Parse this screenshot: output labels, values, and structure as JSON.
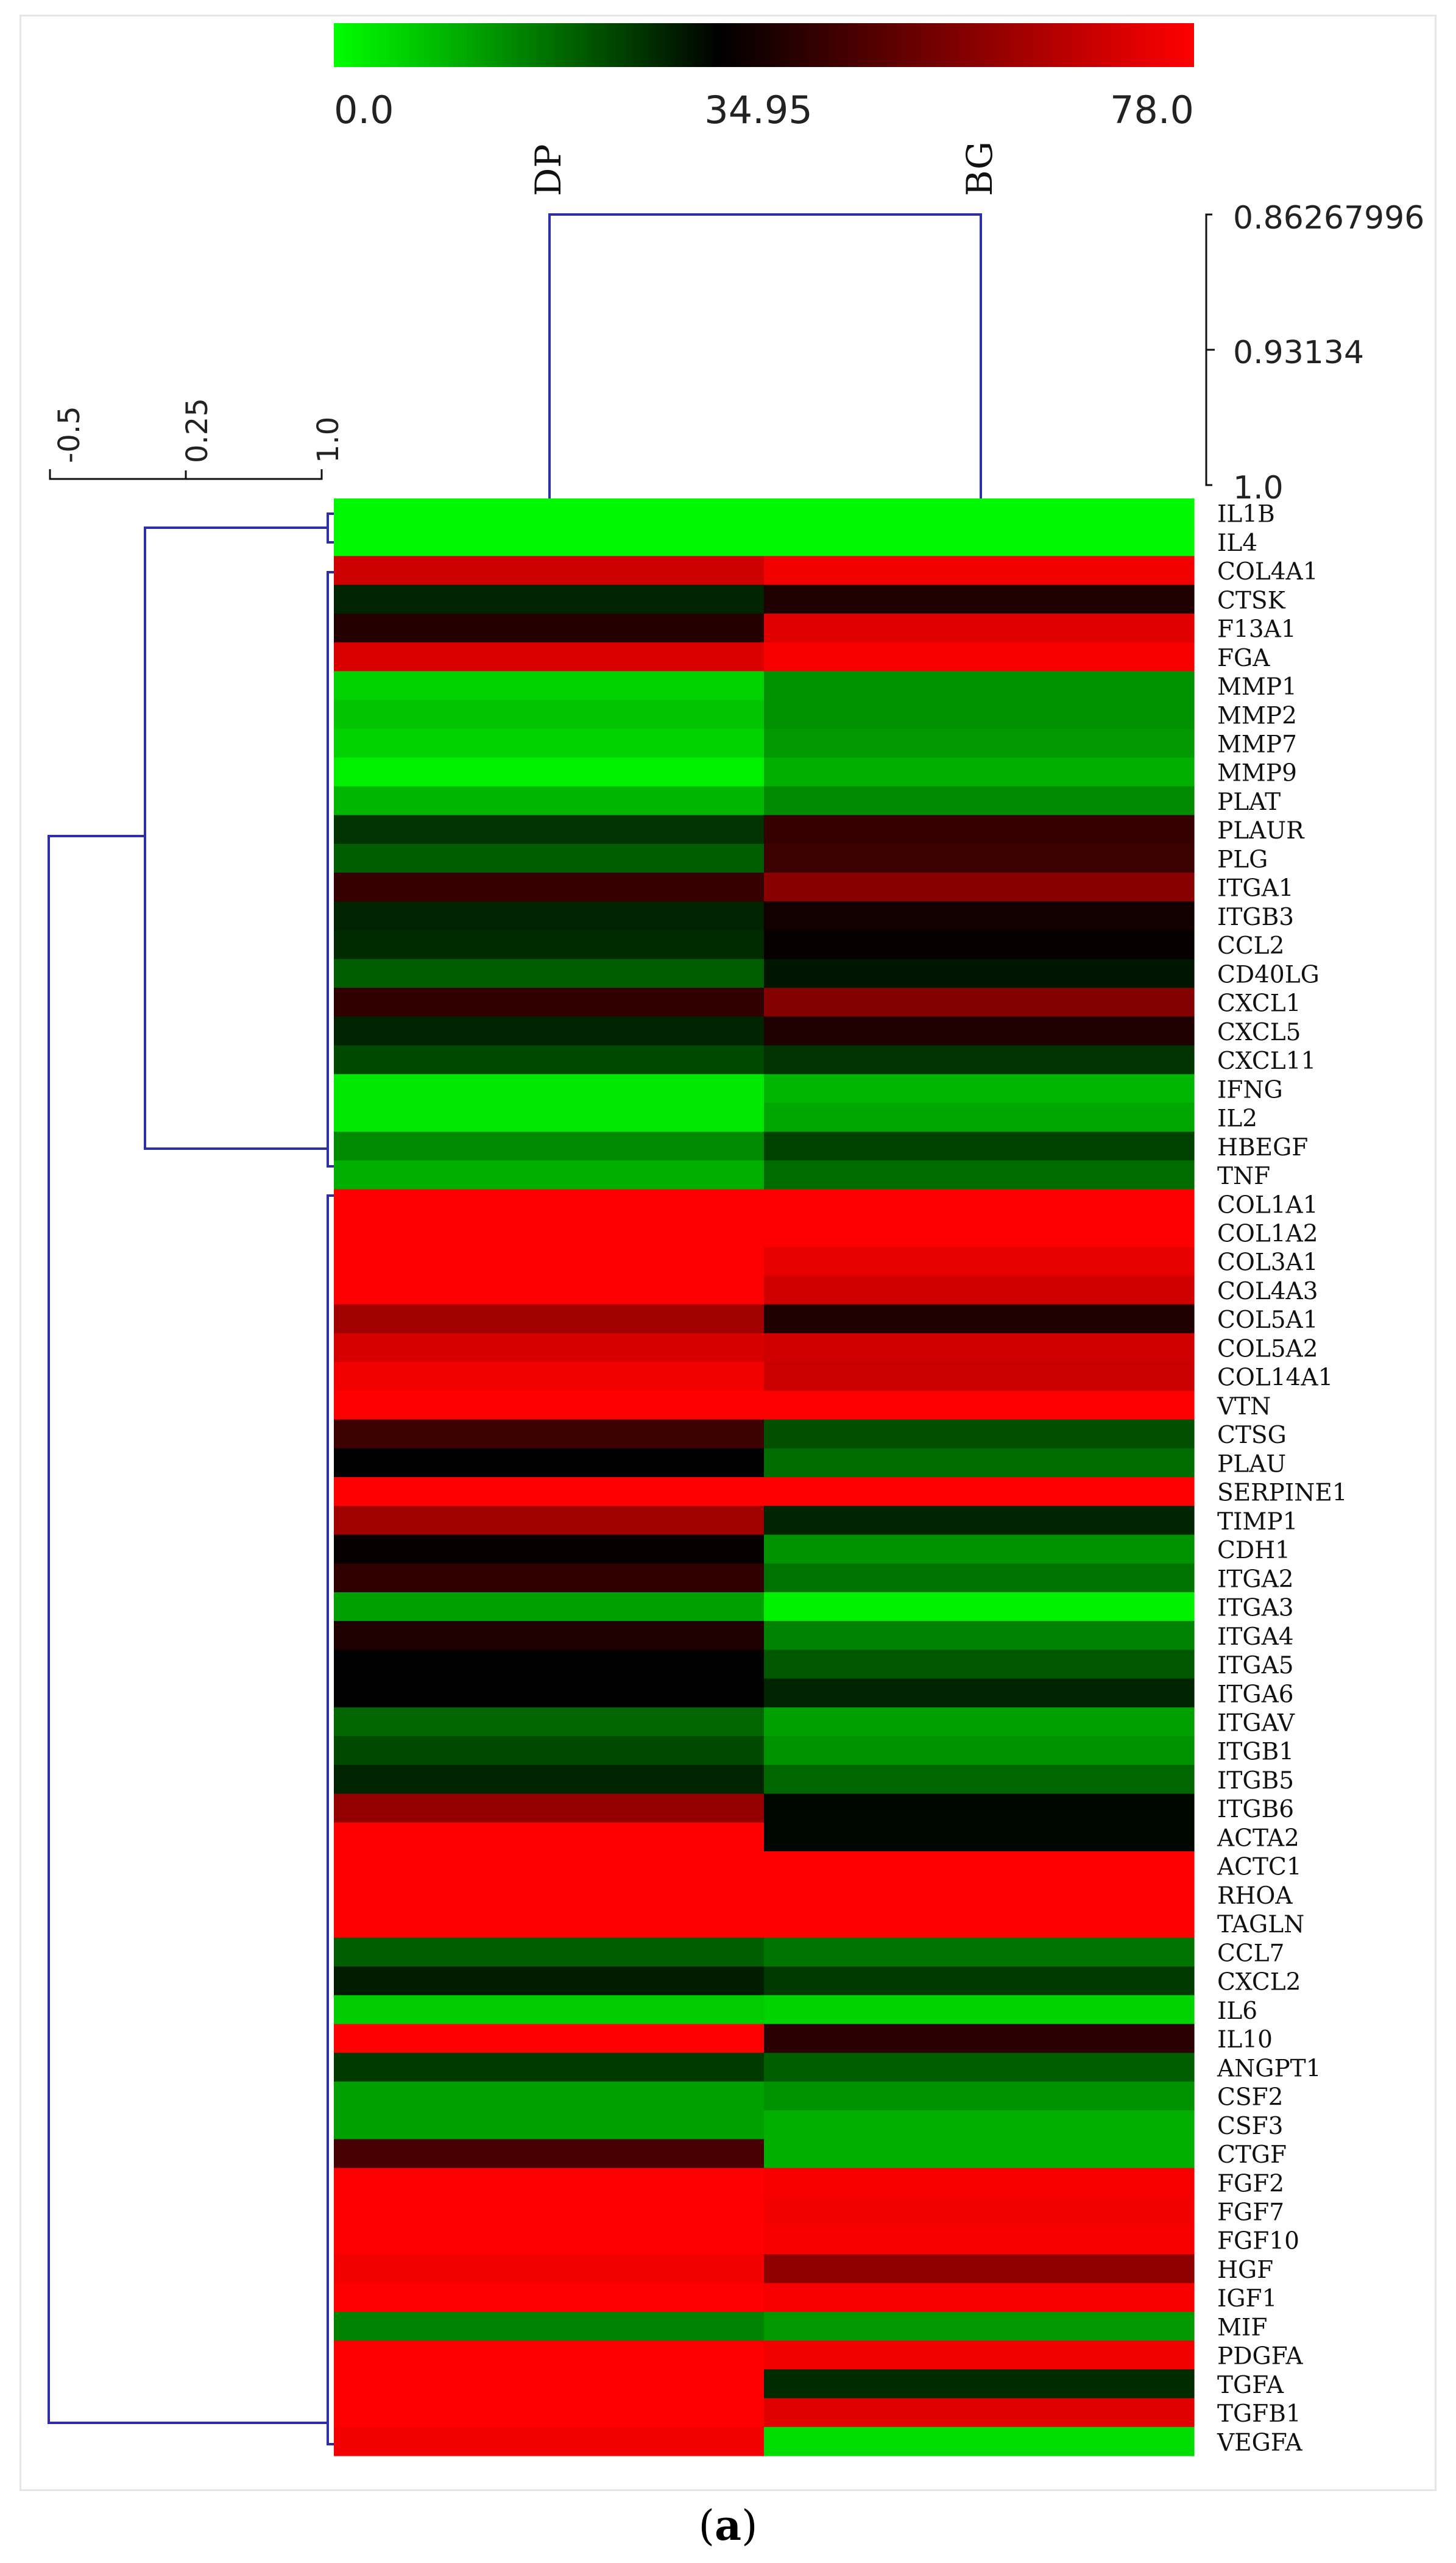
{
  "chart_data": {
    "type": "heatmap",
    "colorscale": {
      "min": 0.0,
      "mid": 34.95,
      "max": 78.0,
      "min_label": "0.0",
      "mid_label": "34.95",
      "max_label": "78.0",
      "colors": [
        "#00ff00",
        "#000000",
        "#ff0000"
      ]
    },
    "columns": [
      "DP",
      "BG"
    ],
    "rows": [
      "IL1B",
      "IL4",
      "COL4A1",
      "CTSK",
      "F13A1",
      "FGA",
      "MMP1",
      "MMP2",
      "MMP7",
      "MMP9",
      "PLAT",
      "PLAUR",
      "PLG",
      "ITGA1",
      "ITGB3",
      "CCL2",
      "CD40LG",
      "CXCL1",
      "CXCL5",
      "CXCL11",
      "IFNG",
      "IL2",
      "HBEGF",
      "TNF",
      "COL1A1",
      "COL1A2",
      "COL3A1",
      "COL4A3",
      "COL5A1",
      "COL5A2",
      "COL14A1",
      "VTN",
      "CTSG",
      "PLAU",
      "SERPINE1",
      "TIMP1",
      "CDH1",
      "ITGA2",
      "ITGA3",
      "ITGA4",
      "ITGA5",
      "ITGA6",
      "ITGAV",
      "ITGB1",
      "ITGB5",
      "ITGB6",
      "ACTA2",
      "ACTC1",
      "RHOA",
      "TAGLN",
      "CCL7",
      "CXCL2",
      "IL6",
      "IL10",
      "ANGPT1",
      "CSF2",
      "CSF3",
      "CTGF",
      "FGF2",
      "FGF7",
      "FGF10",
      "HGF",
      "IGF1",
      "MIF",
      "PDGFA",
      "TGFA",
      "TGFB1",
      "VEGFA"
    ],
    "values": [
      [
        1.0,
        1.0
      ],
      [
        1.0,
        1.0
      ],
      [
        69.9,
        76.0
      ],
      [
        30.0,
        40.0
      ],
      [
        41.0,
        73.0
      ],
      [
        72.0,
        77.0
      ],
      [
        6.0,
        15.0
      ],
      [
        8.0,
        15.0
      ],
      [
        6.0,
        14.0
      ],
      [
        2.0,
        11.0
      ],
      [
        10.0,
        16.0
      ],
      [
        28.0,
        44.0
      ],
      [
        22.0,
        45.0
      ],
      [
        44.0,
        58.0
      ],
      [
        30.0,
        38.0
      ],
      [
        29.0,
        36.0
      ],
      [
        22.0,
        32.0
      ],
      [
        43.0,
        57.0
      ],
      [
        30.0,
        40.0
      ],
      [
        25.0,
        28.0
      ],
      [
        3.0,
        10.0
      ],
      [
        3.0,
        12.0
      ],
      [
        16.0,
        26.0
      ],
      [
        11.0,
        20.0
      ],
      [
        78.0,
        78.0
      ],
      [
        78.0,
        78.0
      ],
      [
        78.0,
        74.0
      ],
      [
        78.0,
        70.0
      ],
      [
        62.0,
        40.0
      ],
      [
        71.0,
        70.0
      ],
      [
        76.0,
        69.0
      ],
      [
        78.0,
        78.0
      ],
      [
        45.0,
        24.0
      ],
      [
        34.9,
        20.0
      ],
      [
        78.0,
        78.0
      ],
      [
        62.0,
        30.0
      ],
      [
        36.0,
        15.0
      ],
      [
        43.0,
        19.0
      ],
      [
        13.0,
        2.0
      ],
      [
        40.0,
        17.0
      ],
      [
        34.9,
        23.0
      ],
      [
        34.9,
        30.0
      ],
      [
        21.0,
        13.0
      ],
      [
        25.0,
        15.0
      ],
      [
        30.0,
        21.0
      ],
      [
        60.0,
        34.0
      ],
      [
        78.0,
        34.0
      ],
      [
        78.0,
        78.0
      ],
      [
        78.0,
        78.0
      ],
      [
        78.0,
        78.0
      ],
      [
        22.0,
        19.0
      ],
      [
        31.0,
        27.0
      ],
      [
        7.0,
        6.0
      ],
      [
        78.0,
        42.0
      ],
      [
        27.0,
        22.0
      ],
      [
        13.0,
        15.0
      ],
      [
        13.0,
        11.0
      ],
      [
        47.0,
        11.0
      ],
      [
        78.0,
        77.0
      ],
      [
        78.0,
        76.0
      ],
      [
        78.0,
        77.0
      ],
      [
        76.0,
        59.0
      ],
      [
        78.0,
        77.0
      ],
      [
        17.0,
        14.0
      ],
      [
        78.0,
        76.0
      ],
      [
        78.0,
        29.0
      ],
      [
        78.0,
        73.0
      ],
      [
        76.0,
        5.0
      ]
    ],
    "row_dendrogram_scale": [
      "-0.5",
      "0.25",
      "1.0"
    ],
    "column_dendrogram_scale": [
      "0.86267996",
      "0.93134",
      "1.0"
    ]
  },
  "caption": {
    "open": "(",
    "letter": "a",
    "close": ")"
  }
}
